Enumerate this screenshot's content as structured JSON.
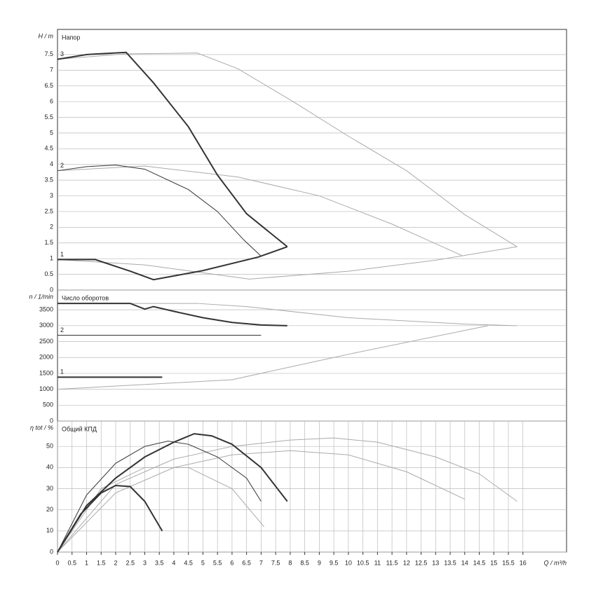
{
  "chart_data": [
    {
      "type": "line",
      "ylabel": "H / m",
      "title": "Напор",
      "xlim": [
        0,
        17.5
      ],
      "ylim": [
        0,
        8.3
      ],
      "yticks": [
        0,
        0.5,
        1,
        1.5,
        2,
        2.5,
        3,
        3.5,
        4,
        4.5,
        5,
        5.5,
        6,
        6.5,
        7,
        7.5
      ],
      "grid": true,
      "series": [
        {
          "color": "#aaaaaa",
          "linewidth": 1,
          "x": [
            0,
            2.3,
            4.8,
            6.2,
            8.1,
            10,
            12,
            14,
            15.8
          ],
          "values": [
            7.35,
            7.52,
            7.55,
            7.05,
            6,
            4.9,
            3.8,
            2.4,
            1.38
          ]
        },
        {
          "color": "#aaaaaa",
          "linewidth": 1,
          "x": [
            0,
            3,
            6.6,
            10,
            13,
            15.8
          ],
          "values": [
            0.97,
            0.8,
            0.35,
            0.6,
            0.95,
            1.38
          ]
        },
        {
          "color": "#aaaaaa",
          "linewidth": 1,
          "x": [
            0,
            3,
            6.2,
            9,
            11.5,
            13.9
          ],
          "values": [
            3.8,
            3.95,
            3.6,
            3,
            2.1,
            1.1
          ]
        },
        {
          "name": "3",
          "color": "#333333",
          "linewidth": 2,
          "x": [
            0,
            1,
            2.36,
            3.3,
            4.5,
            5.5,
            6.5,
            7.9
          ],
          "values": [
            7.35,
            7.5,
            7.57,
            6.6,
            5.2,
            3.66,
            2.43,
            1.38
          ]
        },
        {
          "name": "2",
          "color": "#333333",
          "linewidth": 1,
          "x": [
            0,
            1,
            2,
            3,
            4.5,
            5.5,
            6.4,
            7
          ],
          "values": [
            3.8,
            3.93,
            3.98,
            3.85,
            3.2,
            2.5,
            1.6,
            1.08
          ]
        },
        {
          "name": "1",
          "color": "#333333",
          "linewidth": 2,
          "x": [
            0,
            1.3,
            2.5,
            3.3,
            5,
            6.9,
            7.9
          ],
          "values": [
            0.97,
            0.97,
            0.6,
            0.33,
            0.62,
            1.05,
            1.38
          ]
        }
      ]
    },
    {
      "type": "line",
      "ylabel": "n / 1/min",
      "title": "Число оборотов",
      "xlim": [
        0,
        17.5
      ],
      "ylim": [
        0,
        4120
      ],
      "yticks": [
        0,
        500,
        1000,
        1500,
        2000,
        2500,
        3000,
        3500
      ],
      "grid": true,
      "series": [
        {
          "color": "#aaaaaa",
          "linewidth": 1,
          "x": [
            0,
            4.8,
            6.5,
            10,
            14,
            15.8
          ],
          "values": [
            3700,
            3700,
            3600,
            3250,
            3050,
            3000
          ]
        },
        {
          "color": "#aaaaaa",
          "linewidth": 1,
          "x": [
            0,
            6,
            10,
            14.8
          ],
          "values": [
            1000,
            1300,
            2100,
            3000
          ]
        },
        {
          "color": "#333333",
          "linewidth": 2,
          "x": [
            0,
            2.5,
            3,
            3.3,
            4,
            5,
            6,
            7,
            7.9
          ],
          "values": [
            3700,
            3700,
            3520,
            3600,
            3450,
            3250,
            3100,
            3020,
            3000
          ]
        },
        {
          "name": "2",
          "color": "#333333",
          "linewidth": 1,
          "x": [
            0,
            7
          ],
          "values": [
            2700,
            2700
          ]
        },
        {
          "name": "1",
          "color": "#333333",
          "linewidth": 2,
          "x": [
            0,
            3.6
          ],
          "values": [
            1380,
            1380
          ]
        }
      ]
    },
    {
      "type": "line",
      "ylabel": "η tot / %",
      "title": "Общий КПД",
      "xlabel": "Q / m³/h",
      "xlim": [
        0,
        17.5
      ],
      "ylim": [
        0,
        62
      ],
      "yticks": [
        0,
        10,
        20,
        30,
        40,
        50
      ],
      "grid": true,
      "xticks": [
        0,
        0.5,
        1,
        1.5,
        2,
        2.5,
        3,
        3.5,
        4,
        4.5,
        5,
        5.5,
        6,
        6.5,
        7,
        7.5,
        8,
        8.5,
        9,
        9.5,
        10,
        10.5,
        11,
        11.5,
        12,
        12.5,
        13,
        13.5,
        14,
        14.5,
        15,
        15.5,
        16
      ],
      "series": [
        {
          "color": "#aaaaaa",
          "linewidth": 1,
          "x": [
            0,
            2,
            4,
            6,
            8,
            9.5,
            11,
            13,
            14.5,
            15.8
          ],
          "values": [
            0,
            32,
            44,
            50,
            53,
            54,
            52,
            45,
            37,
            24
          ]
        },
        {
          "color": "#aaaaaa",
          "linewidth": 1,
          "x": [
            0,
            2,
            4,
            6,
            8,
            10,
            12,
            14
          ],
          "values": [
            0,
            28,
            40,
            46,
            48,
            46,
            38,
            25
          ]
        },
        {
          "color": "#aaaaaa",
          "linewidth": 1,
          "x": [
            0,
            1.5,
            3,
            4.5,
            6,
            7.1
          ],
          "values": [
            0,
            30,
            40,
            40,
            30,
            12
          ]
        },
        {
          "color": "#333333",
          "linewidth": 2,
          "x": [
            0,
            1,
            2,
            3,
            4,
            4.7,
            5.3,
            6,
            7,
            7.9
          ],
          "values": [
            0,
            22,
            35,
            45,
            52,
            56,
            55,
            51,
            40,
            24
          ]
        },
        {
          "color": "#333333",
          "linewidth": 1,
          "x": [
            0,
            1,
            2,
            3,
            3.8,
            4.5,
            5.5,
            6.5,
            7
          ],
          "values": [
            0,
            27,
            42,
            50,
            52.5,
            51,
            45,
            35,
            24
          ]
        },
        {
          "color": "#333333",
          "linewidth": 2,
          "x": [
            0,
            0.8,
            1.5,
            2,
            2.5,
            3,
            3.6
          ],
          "values": [
            0,
            18,
            28,
            31.5,
            31,
            24,
            10
          ]
        }
      ]
    }
  ]
}
